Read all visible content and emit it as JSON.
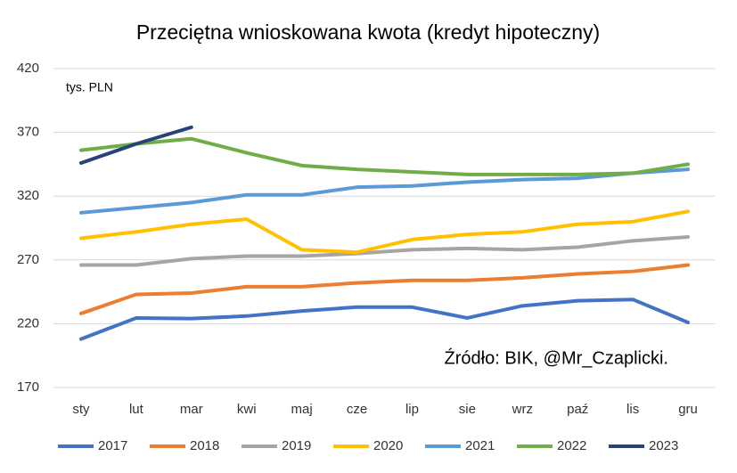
{
  "chart_data": {
    "type": "line",
    "title": "Przeciętna wnioskowana kwota (kredyt hipoteczny)",
    "annotations": [
      "tys. PLN",
      "Źródło: BIK, @Mr_Czaplicki."
    ],
    "categories": [
      "sty",
      "lut",
      "mar",
      "kwi",
      "maj",
      "cze",
      "lip",
      "sie",
      "wrz",
      "paź",
      "lis",
      "gru"
    ],
    "series": [
      {
        "name": "2017",
        "color": "#4472c4",
        "values": [
          208,
          224.5,
          224,
          226,
          230,
          233,
          233,
          224.5,
          234,
          238,
          239,
          221
        ]
      },
      {
        "name": "2018",
        "color": "#ed7d31",
        "values": [
          228,
          243,
          244,
          249,
          249,
          252,
          254,
          254,
          256,
          259,
          261,
          266
        ]
      },
      {
        "name": "2019",
        "color": "#a5a5a5",
        "values": [
          266,
          266,
          271,
          273,
          273,
          275,
          278,
          279,
          278,
          280,
          285,
          288
        ]
      },
      {
        "name": "2020",
        "color": "#ffc000",
        "values": [
          287,
          292,
          298,
          302,
          278,
          276,
          286,
          290,
          292,
          298,
          300,
          308
        ]
      },
      {
        "name": "2021",
        "color": "#5b9bd5",
        "values": [
          307,
          311,
          315,
          321,
          321,
          327,
          328,
          331,
          333,
          334,
          338,
          341
        ]
      },
      {
        "name": "2022",
        "color": "#70ad47",
        "values": [
          356,
          361,
          365,
          354,
          344,
          341,
          339,
          337,
          337,
          337,
          338,
          345
        ]
      },
      {
        "name": "2023",
        "color": "#264478",
        "values": [
          346,
          361,
          374,
          null,
          null,
          null,
          null,
          null,
          null,
          null,
          null,
          null
        ]
      }
    ],
    "ylim": [
      170,
      420
    ],
    "yticks": [
      170,
      220,
      270,
      320,
      370,
      420
    ],
    "grid": true,
    "legend": "bottom"
  }
}
